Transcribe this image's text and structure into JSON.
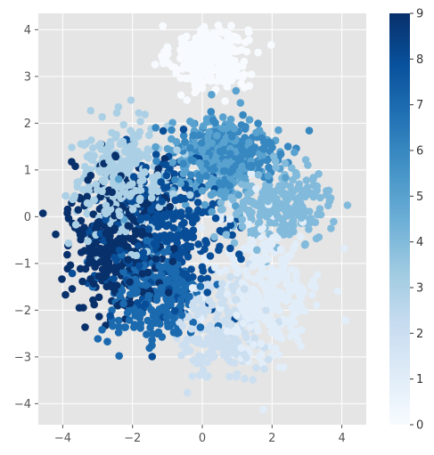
{
  "chart_data": {
    "type": "scatter",
    "title": "",
    "xlabel": "",
    "ylabel": "",
    "xlim": [
      -4.7,
      4.7
    ],
    "ylim": [
      -4.45,
      4.35
    ],
    "xticks": [
      -4,
      -2,
      0,
      2,
      4
    ],
    "yticks": [
      -4,
      -3,
      -2,
      -1,
      0,
      1,
      2,
      3,
      4
    ],
    "x_tick_labels": [
      "−4",
      "−2",
      "0",
      "2",
      "4"
    ],
    "y_tick_labels": [
      "−4",
      "−3",
      "−2",
      "−1",
      "0",
      "1",
      "2",
      "3",
      "4"
    ],
    "grid": true,
    "background": "#e5e5e5",
    "grid_color": "#ffffff",
    "colormap": "Blues",
    "colorbar": {
      "range": [
        0,
        9
      ],
      "ticks": [
        0,
        1,
        2,
        3,
        4,
        5,
        6,
        7,
        8,
        9
      ],
      "tick_labels": [
        "0",
        "1",
        "2",
        "3",
        "4",
        "5",
        "6",
        "7",
        "8",
        "9"
      ],
      "colors": [
        "#f7fbff",
        "#deebf7",
        "#c6dbef",
        "#9ecae1",
        "#6baed6",
        "#4292c6",
        "#2171b5",
        "#08519c",
        "#08306b"
      ]
    },
    "clusters": [
      {
        "class": 0,
        "center": [
          0.2,
          3.4
        ],
        "spread": [
          0.55,
          0.35
        ],
        "count": 300
      },
      {
        "class": 1,
        "center": [
          1.9,
          -1.5
        ],
        "spread": [
          0.75,
          0.8
        ],
        "count": 300
      },
      {
        "class": 2,
        "center": [
          0.5,
          -2.4
        ],
        "spread": [
          0.6,
          0.55
        ],
        "count": 180
      },
      {
        "class": 3,
        "center": [
          -2.3,
          0.8
        ],
        "spread": [
          0.7,
          0.6
        ],
        "count": 300
      },
      {
        "class": 4,
        "center": [
          2.2,
          0.25
        ],
        "spread": [
          0.75,
          0.4
        ],
        "count": 250
      },
      {
        "class": 5,
        "center": [
          0.5,
          1.2
        ],
        "spread": [
          0.7,
          0.45
        ],
        "count": 250
      },
      {
        "class": 6,
        "center": [
          0.7,
          1.35
        ],
        "spread": [
          0.75,
          0.35
        ],
        "count": 250
      },
      {
        "class": 7,
        "center": [
          -1.4,
          -1.7
        ],
        "spread": [
          0.7,
          0.55
        ],
        "count": 250
      },
      {
        "class": 8,
        "center": [
          -1.0,
          -0.4
        ],
        "spread": [
          0.9,
          0.8
        ],
        "count": 300
      },
      {
        "class": 9,
        "center": [
          -2.5,
          -0.4
        ],
        "spread": [
          0.65,
          0.8
        ],
        "count": 350
      }
    ]
  }
}
